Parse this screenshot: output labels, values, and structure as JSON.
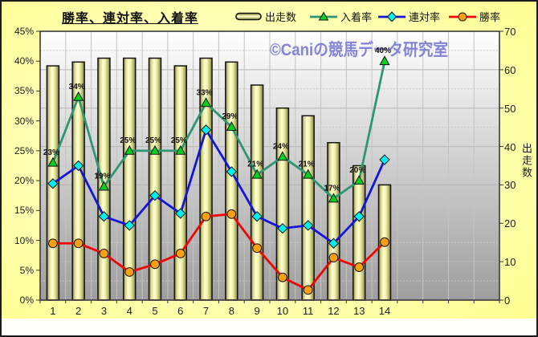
{
  "title": "勝率、連対率、入着率",
  "watermark": "©Caniの競馬データ研究室",
  "legend": {
    "items": [
      {
        "label": "出走数",
        "swatch": "bar"
      },
      {
        "label": "入着率",
        "swatch": "triangle"
      },
      {
        "label": "連対率",
        "swatch": "diamond"
      },
      {
        "label": "勝率",
        "swatch": "circle"
      }
    ]
  },
  "chart_data": {
    "type": "combo-bar-line",
    "categories": [
      "1",
      "2",
      "3",
      "4",
      "5",
      "6",
      "7",
      "8",
      "9",
      "10",
      "11",
      "12",
      "13",
      "14"
    ],
    "x_axis_slots": 18,
    "grid": true,
    "legend_position": "top",
    "left_axis": {
      "min": 0,
      "max": 45,
      "step": 5,
      "ticks": [
        "0%",
        "5%",
        "10%",
        "15%",
        "20%",
        "25%",
        "30%",
        "35%",
        "40%",
        "45%"
      ]
    },
    "right_axis": {
      "min": 0,
      "max": 70,
      "step": 10,
      "ticks": [
        "0",
        "10",
        "20",
        "30",
        "40",
        "50",
        "60",
        "70"
      ],
      "title": "出走数"
    },
    "series": [
      {
        "name": "出走数",
        "type": "bar",
        "axis": "right",
        "values": [
          61,
          62,
          63,
          63,
          63,
          61,
          63,
          62,
          56,
          50,
          48,
          41,
          35,
          30
        ]
      },
      {
        "name": "入着率",
        "type": "line",
        "axis": "left",
        "marker": "triangle",
        "values": [
          23,
          34,
          19,
          25,
          25,
          25,
          33,
          29,
          21,
          24,
          21,
          17,
          20,
          40
        ],
        "point_labels": [
          "23%",
          "34%",
          "19%",
          "25%",
          "25%",
          "25%",
          "33%",
          "29%",
          "21%",
          "24%",
          "21%",
          "17%",
          "20%",
          "40%"
        ]
      },
      {
        "name": "連対率",
        "type": "line",
        "axis": "left",
        "marker": "diamond",
        "values": [
          19.5,
          22.5,
          14,
          12.5,
          17.5,
          14.5,
          28.5,
          21.5,
          14,
          12,
          12.5,
          9.5,
          14,
          23.5
        ]
      },
      {
        "name": "勝率",
        "type": "line",
        "axis": "left",
        "marker": "circle",
        "values": [
          9.5,
          9.5,
          7.8,
          4.7,
          6,
          7.8,
          14,
          14.4,
          8.7,
          3.8,
          1.7,
          7.1,
          5.5,
          9.7
        ]
      }
    ]
  },
  "colors": {
    "background": "#ffff99",
    "plot_top": "#ffffff",
    "plot_bottom": "#9e9e9e",
    "grid_major": "#b5b5b5",
    "grid_minor": "#c9c9c9",
    "grid_vertical": "#c3c3c3",
    "plot_border": "#3a3a3a",
    "bar_edge_dark": "#6e6e40",
    "bar_mid": "#d8d786",
    "bar_light": "#ffffd9",
    "bar_outline": "#141414",
    "inhaku_line": "#2e9672",
    "inhaku_marker": "#00d21e",
    "rentai_line": "#1414dc",
    "rentai_marker": "#00f0f0",
    "shoritsu_line": "#f00505",
    "shoritsu_marker": "#ffa011",
    "watermark": "#8484d6",
    "tick_text": "#1c1c1c"
  }
}
